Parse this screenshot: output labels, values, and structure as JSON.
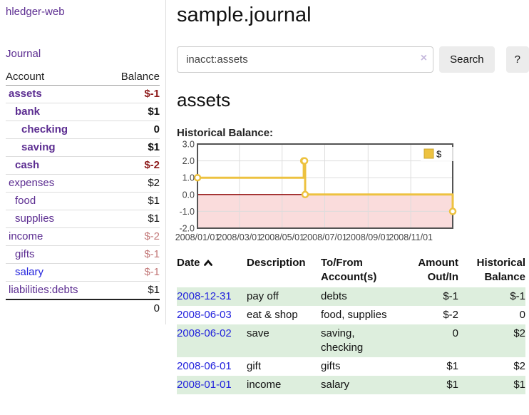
{
  "sidebar": {
    "brand": "hledger-web",
    "nav": {
      "journal": "Journal"
    },
    "accounts_table": {
      "col_account": "Account",
      "col_balance": "Balance",
      "accounts": [
        {
          "name": "assets",
          "balance": "$-1",
          "indent": 1,
          "bold": true,
          "neg": "strong"
        },
        {
          "name": "bank",
          "balance": "$1",
          "indent": 2,
          "bold": true,
          "neg": "none"
        },
        {
          "name": "checking",
          "balance": "0",
          "indent": 3,
          "bold": true,
          "neg": "none"
        },
        {
          "name": "saving",
          "balance": "$1",
          "indent": 3,
          "bold": true,
          "neg": "none"
        },
        {
          "name": "cash",
          "balance": "$-2",
          "indent": 2,
          "bold": true,
          "neg": "strong"
        },
        {
          "name": "expenses",
          "balance": "$2",
          "indent": 1,
          "bold": false,
          "neg": "none"
        },
        {
          "name": "food",
          "balance": "$1",
          "indent": 2,
          "bold": false,
          "neg": "none"
        },
        {
          "name": "supplies",
          "balance": "$1",
          "indent": 2,
          "bold": false,
          "neg": "none"
        },
        {
          "name": "income",
          "balance": "$-2",
          "indent": 1,
          "bold": false,
          "neg": "soft"
        },
        {
          "name": "gifts",
          "balance": "$-1",
          "indent": 2,
          "bold": false,
          "neg": "soft"
        },
        {
          "name": "salary",
          "balance": "$-1",
          "indent": 2,
          "bold": false,
          "neg": "soft",
          "link_color": "blue"
        },
        {
          "name": "liabilities:debts",
          "balance": "$1",
          "indent": 1,
          "bold": false,
          "neg": "none"
        }
      ],
      "total": "0"
    }
  },
  "header": {
    "title": "sample.journal"
  },
  "search": {
    "value": "inacct:assets",
    "clear_icon": "×",
    "search_button": "Search",
    "help_button": "?"
  },
  "account_view": {
    "heading": "assets",
    "chart_title": "Historical Balance:"
  },
  "chart_data": {
    "type": "line",
    "style": "step",
    "title": "Historical Balance",
    "series": [
      {
        "name": "$",
        "color": "#edc240",
        "points": [
          [
            "2008-01-01",
            1
          ],
          [
            "2008-06-01",
            2
          ],
          [
            "2008-06-02",
            2
          ],
          [
            "2008-06-03",
            0
          ],
          [
            "2008-12-31",
            -1
          ]
        ]
      }
    ],
    "ylim": [
      -2,
      3
    ],
    "yticks": [
      "3.0",
      "2.0",
      "1.0",
      "0.0",
      "-1.0",
      "-2.0"
    ],
    "xticks": [
      "2008/01/01",
      "2008/03/01",
      "2008/05/01",
      "2008/07/01",
      "2008/09/01",
      "2008/11/01"
    ],
    "legend": {
      "label": "$",
      "position": "top-right"
    },
    "grid": true,
    "negative_region_fill": "#fadcdc",
    "zero_line_color": "#8b0000"
  },
  "register": {
    "headers": [
      {
        "line1": "Date",
        "line2": "",
        "sortable": true,
        "sort_icon": "chevron-up"
      },
      {
        "line1": "Description",
        "line2": ""
      },
      {
        "line1": "To/From",
        "line2": "Account(s)"
      },
      {
        "line1": "Amount",
        "line2": "Out/In"
      },
      {
        "line1": "Historical",
        "line2": "Balance"
      }
    ],
    "rows": [
      {
        "date": "2008-12-31",
        "description": "pay off",
        "accounts": "debts",
        "amount": "$-1",
        "amount_neg": true,
        "balance": "$-1",
        "balance_neg": true,
        "shade": true
      },
      {
        "date": "2008-06-03",
        "description": "eat & shop",
        "accounts": "food, supplies",
        "amount": "$-2",
        "amount_neg": true,
        "balance": "0",
        "balance_neg": false,
        "shade": false
      },
      {
        "date": "2008-06-02",
        "description": "save",
        "accounts": "saving, checking",
        "amount": "0",
        "amount_neg": false,
        "balance": "$2",
        "balance_neg": false,
        "shade": true
      },
      {
        "date": "2008-06-01",
        "description": "gift",
        "accounts": "gifts",
        "amount": "$1",
        "amount_neg": false,
        "balance": "$2",
        "balance_neg": false,
        "shade": false
      },
      {
        "date": "2008-01-01",
        "description": "income",
        "accounts": "salary",
        "amount": "$1",
        "amount_neg": false,
        "balance": "$1",
        "balance_neg": false,
        "shade": true
      }
    ]
  },
  "colors": {
    "purple_link": "#5c2d91",
    "blue_link": "#2222dd",
    "negative_strong": "#8e1c1c",
    "negative_soft": "#c27878",
    "negative_table": "#8e2121",
    "row_shade_green": "#ddeedd",
    "chart_line": "#edc240"
  }
}
